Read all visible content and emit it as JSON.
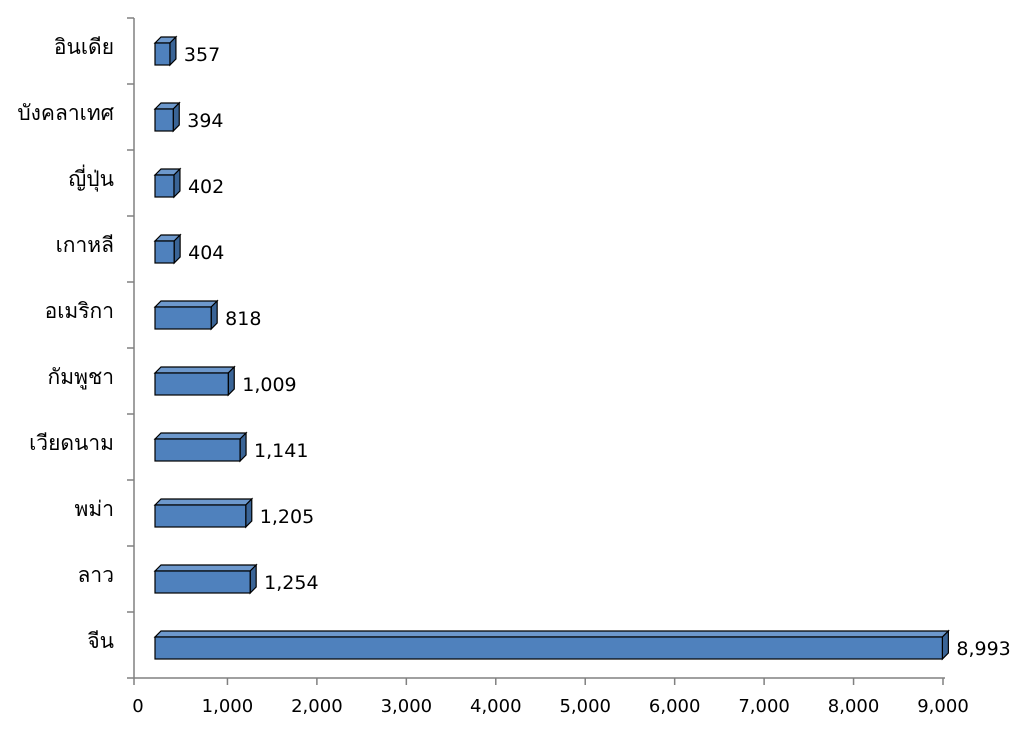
{
  "chart_data": {
    "type": "bar",
    "orientation": "horizontal",
    "style": "3d",
    "categories": [
      "อินเดีย",
      "บังคลาเทศ",
      "ญี่ปุ่น",
      "เกาหลี",
      "อเมริกา",
      "กัมพูชา",
      "เวียดนาม",
      "พม่า",
      "ลาว",
      "จีน"
    ],
    "values": [
      357,
      394,
      402,
      404,
      818,
      1009,
      1141,
      1205,
      1254,
      8993
    ],
    "value_labels": [
      "357",
      "394",
      "402",
      "404",
      "818",
      "1,009",
      "1,141",
      "1,205",
      "1,254",
      "8,993"
    ],
    "x_ticks": [
      0,
      1000,
      2000,
      3000,
      4000,
      5000,
      6000,
      7000,
      8000,
      9000
    ],
    "x_tick_labels": [
      "0",
      "1,000",
      "2,000",
      "3,000",
      "4,000",
      "5,000",
      "6,000",
      "7,000",
      "8,000",
      "9,000"
    ],
    "xlim": [
      0,
      9000
    ],
    "title": "",
    "xlabel": "",
    "ylabel": "",
    "grid": false,
    "legend": "none",
    "colors": {
      "bar_front": "#4f81bd",
      "bar_top": "#6d98cc",
      "bar_side": "#3a6496",
      "bar_edge": "#000000",
      "axis": "#808080"
    }
  }
}
